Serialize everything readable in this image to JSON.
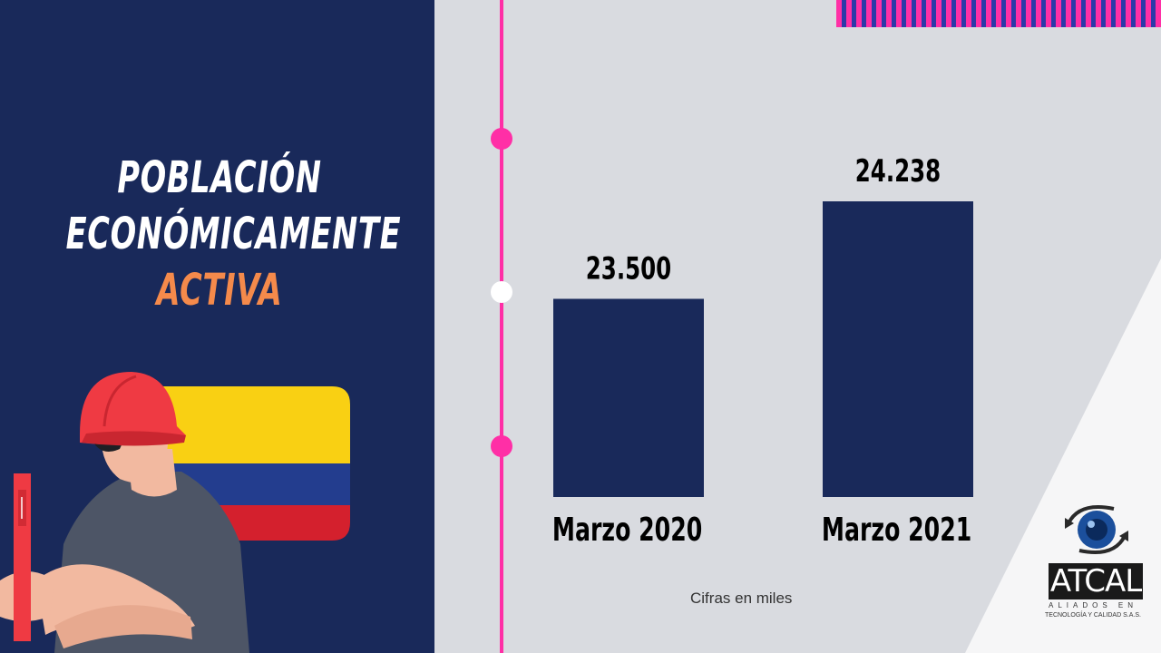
{
  "title": {
    "line1": "POBLACIÓN",
    "line2": "ECONÓMICAMENTE",
    "line3": "ACTIVA"
  },
  "colors": {
    "left_bg": "#19295a",
    "right_bg": "#d9dbe0",
    "bar": "#19295a",
    "accent_pink": "#ff2fa6",
    "accent_orange": "#f58a4b"
  },
  "chart_data": {
    "type": "bar",
    "title": "POBLACIÓN ECONÓMICAMENTE ACTIVA",
    "categories": [
      "Marzo 2020",
      "Marzo 2021"
    ],
    "values": [
      23500,
      24238
    ],
    "value_labels": [
      "23.500",
      "24.238"
    ],
    "ylim": [
      22000,
      24500
    ],
    "xlabel": "",
    "ylabel": "",
    "note": "Cifras en miles",
    "grid": false
  },
  "logo": {
    "name": "ATCAL",
    "tagline1": "ALIADOS EN",
    "tagline2": "TECNOLOGÍA Y CALIDAD S.A.S."
  },
  "illustration": {
    "icon": "worker-with-colombia-flag-icon"
  }
}
